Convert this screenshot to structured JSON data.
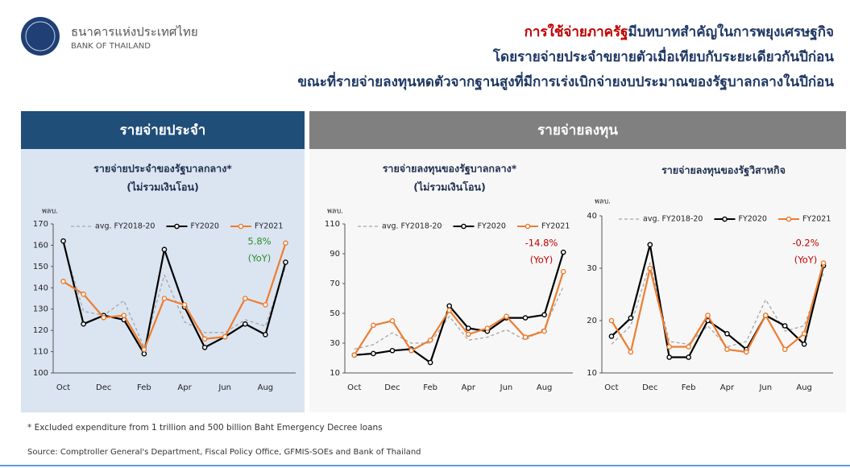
{
  "header": {
    "org_th": "ธนาคารแห่งประเทศไทย",
    "org_en": "BANK OF THAILAND",
    "headline_highlight": "การใช้จ่ายภาครัฐ",
    "headline_lines": [
      "มีบทบาทสำคัญในการพยุงเศรษฐกิจ",
      "โดยรายจ่ายประจำขยายตัวเมื่อเทียบกับระยะเดียวกันปีก่อน",
      "ขณะที่รายจ่ายลงทุนหดตัวจากฐานสูงที่มีการเร่งเบิกจ่ายงบประมาณของรัฐบาลกลางในปีก่อน"
    ]
  },
  "panels": [
    {
      "title": "รายจ่ายประจำ"
    },
    {
      "title": "รายจ่ายลงทุน"
    }
  ],
  "chart_data": [
    {
      "type": "line",
      "title": "รายจ่ายประจำของรัฐบาลกลาง*",
      "subtitle": "(ไม่รวมเงินโอน)",
      "y_label": "พลบ.",
      "categories": [
        "Oct",
        null,
        "Dec",
        null,
        "Feb",
        null,
        "Apr",
        null,
        "Jun",
        null,
        "Aug",
        null
      ],
      "series": [
        {
          "name": "avg. FY2018-20",
          "color": "#a6a6a6",
          "dashed": true,
          "marker": false,
          "values": [
            161,
            129,
            127,
            134,
            112,
            146,
            124,
            119,
            119,
            125,
            122,
            150
          ]
        },
        {
          "name": "FY2020",
          "color": "#000000",
          "dashed": false,
          "marker": true,
          "values": [
            162,
            123,
            127,
            125,
            109,
            158,
            131,
            112,
            117,
            123,
            118,
            152
          ]
        },
        {
          "name": "FY2021",
          "color": "#ed7d31",
          "dashed": false,
          "marker": true,
          "values": [
            143,
            137,
            126,
            127,
            111,
            135,
            132,
            116,
            117,
            135,
            132,
            161
          ]
        }
      ],
      "ylim": [
        100,
        170
      ],
      "yticks": [
        100,
        110,
        120,
        130,
        140,
        150,
        160,
        170
      ],
      "annotation": [
        "5.8%",
        "(YoY)"
      ],
      "annotation_color": "#2e8b2e"
    },
    {
      "type": "line",
      "title": "รายจ่ายลงทุนของรัฐบาลกลาง*",
      "subtitle": "(ไม่รวมเงินโอน)",
      "y_label": "พลบ.",
      "categories": [
        "Oct",
        null,
        "Dec",
        null,
        "Feb",
        null,
        "Apr",
        null,
        "Jun",
        null,
        "Aug",
        null
      ],
      "series": [
        {
          "name": "avg. FY2018-20",
          "color": "#a6a6a6",
          "dashed": true,
          "marker": false,
          "values": [
            26,
            29,
            37,
            30,
            30,
            48,
            32,
            34,
            39,
            32,
            40,
            68
          ]
        },
        {
          "name": "FY2020",
          "color": "#000000",
          "dashed": false,
          "marker": true,
          "values": [
            22,
            23,
            25,
            26,
            17,
            55,
            40,
            38,
            47,
            47,
            49,
            91
          ]
        },
        {
          "name": "FY2021",
          "color": "#ed7d31",
          "dashed": false,
          "marker": true,
          "values": [
            22,
            42,
            45,
            25,
            32,
            52,
            36,
            40,
            48,
            34,
            38,
            78
          ]
        }
      ],
      "ylim": [
        10,
        110
      ],
      "yticks": [
        10,
        30,
        50,
        70,
        90,
        110
      ],
      "annotation": [
        "-14.8%",
        "(YoY)"
      ],
      "annotation_color": "#c00000"
    },
    {
      "type": "line",
      "title": "รายจ่ายลงทุนของรัฐวิสาหกิจ",
      "y_label": "พลบ.",
      "categories": [
        "Oct",
        null,
        "Dec",
        null,
        "Feb",
        null,
        "Apr",
        null,
        "Jun",
        null,
        "Aug",
        null
      ],
      "series": [
        {
          "name": "avg. FY2018-20",
          "color": "#a6a6a6",
          "dashed": true,
          "marker": false,
          "values": [
            15.5,
            19,
            31,
            16,
            15.5,
            19,
            15,
            16,
            24,
            18,
            19,
            29
          ]
        },
        {
          "name": "FY2020",
          "color": "#000000",
          "dashed": false,
          "marker": true,
          "values": [
            17,
            20.5,
            34.5,
            13,
            13,
            20,
            17.5,
            14.5,
            21,
            19,
            15.5,
            30.5
          ]
        },
        {
          "name": "FY2021",
          "color": "#ed7d31",
          "dashed": false,
          "marker": true,
          "values": [
            20,
            14,
            30,
            15,
            15,
            21,
            14.5,
            14,
            21,
            14.5,
            17.5,
            31
          ]
        }
      ],
      "ylim": [
        10,
        40
      ],
      "yticks": [
        10,
        20,
        30,
        40
      ],
      "annotation": [
        "-0.2%",
        "(YoY)"
      ],
      "annotation_color": "#c00000"
    }
  ],
  "footnote": "* Excluded expenditure from 1 trillion and 500 billion Baht Emergency Decree loans",
  "source": "Source: Comptroller General's Department, Fiscal Policy Office, GFMIS-SOEs and Bank of Thailand"
}
